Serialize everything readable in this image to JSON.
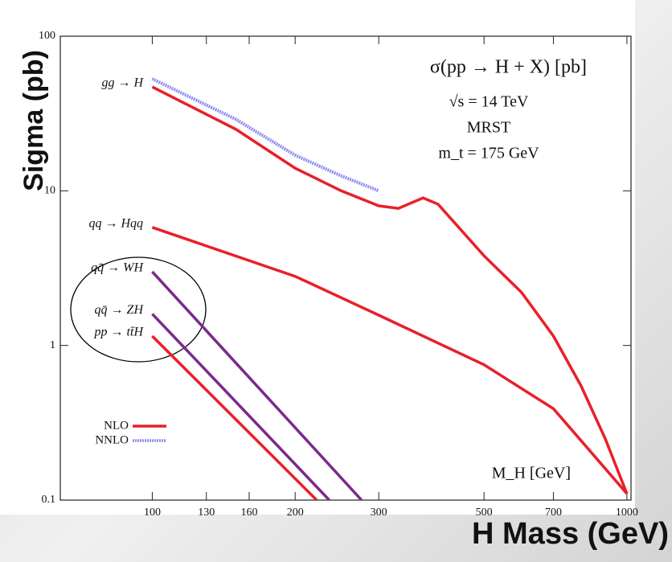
{
  "chart_data": {
    "type": "line",
    "title": "σ(pp → H + X) [pb]",
    "annotations": [
      "√s = 14 TeV",
      "MRST",
      "m_t = 175 GeV",
      "M_H [GeV]"
    ],
    "x_label": "H Mass (GeV)",
    "y_label": "Sigma (pb)",
    "log_x": true,
    "log_y": true,
    "xlim": [
      64,
      1020
    ],
    "ylim": [
      0.1,
      100
    ],
    "xticks": [
      100,
      130,
      160,
      200,
      300,
      500,
      700,
      1000
    ],
    "yticks": [
      100,
      10,
      1,
      0.1
    ],
    "legend": [
      {
        "name": "NLO",
        "color": "#e8202a"
      },
      {
        "name": "NNLO",
        "color": "#8c8cf5"
      }
    ],
    "series": [
      {
        "name": "gg → H",
        "color": "#e8202a",
        "x": [
          100,
          150,
          200,
          250,
          300,
          330,
          372,
          400,
          500,
          600,
          700,
          800,
          900,
          1000
        ],
        "values": [
          47,
          25,
          14,
          10,
          8,
          7.7,
          9,
          8.2,
          3.8,
          2.2,
          1.15,
          0.55,
          0.25,
          0.11
        ]
      },
      {
        "name": "gg → H",
        "color": "#8c8cf5",
        "x": [
          100,
          150,
          200,
          250,
          300
        ],
        "values": [
          53,
          29,
          17,
          12.5,
          10
        ]
      },
      {
        "name": "qq → Hqq",
        "color": "#e8202a",
        "x": [
          100,
          200,
          300,
          500,
          700,
          1000
        ],
        "values": [
          5.8,
          2.8,
          1.57,
          0.75,
          0.39,
          0.11
        ]
      },
      {
        "name": "qq̄ → WH",
        "color": "#7a2a8c",
        "x": [
          100,
          276
        ],
        "values": [
          3,
          0.1
        ]
      },
      {
        "name": "qq̄ → ZH",
        "color": "#7a2a8c",
        "x": [
          100,
          236
        ],
        "values": [
          1.6,
          0.1
        ]
      },
      {
        "name": "pp → tt̄H",
        "color": "#e8202a",
        "x": [
          100,
          222
        ],
        "values": [
          1.15,
          0.1
        ]
      }
    ]
  }
}
